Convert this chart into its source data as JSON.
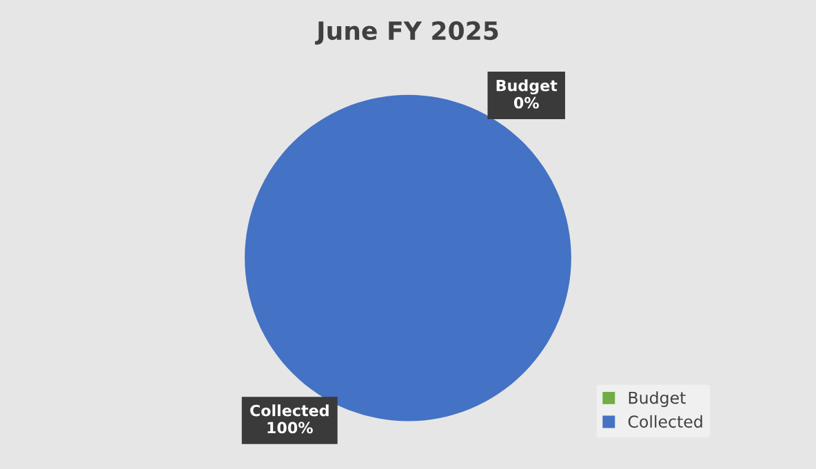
{
  "chart_data": {
    "type": "pie",
    "title": "June FY 2025",
    "categories": [
      "Budget",
      "Collected"
    ],
    "values": [
      0,
      100
    ],
    "colors": [
      "#70ad47",
      "#4472c4"
    ],
    "value_labels": [
      "0%",
      "100%"
    ],
    "legend": "bottom right"
  }
}
